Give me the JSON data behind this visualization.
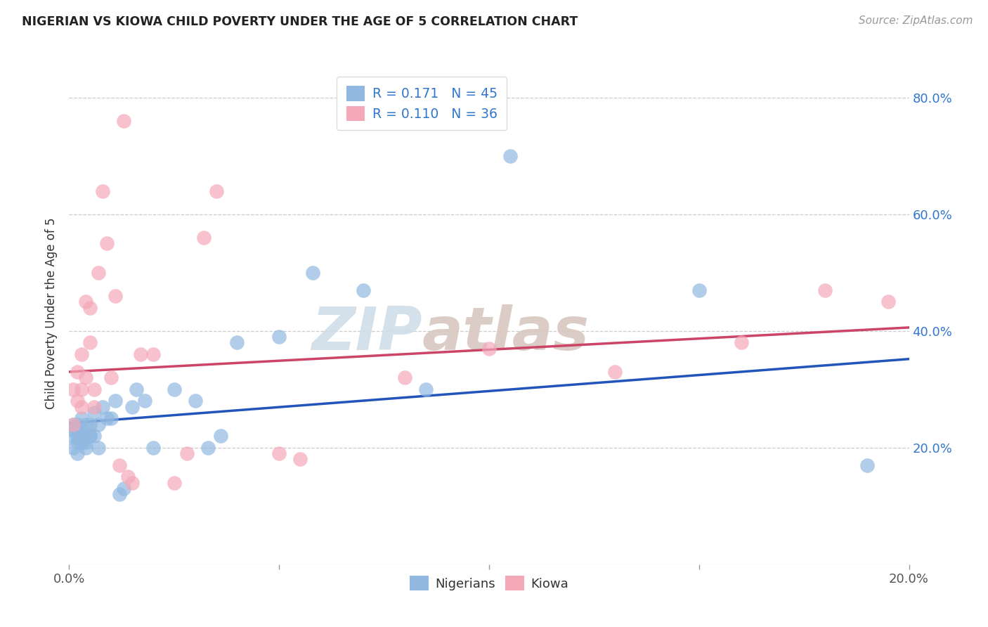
{
  "title": "NIGERIAN VS KIOWA CHILD POVERTY UNDER THE AGE OF 5 CORRELATION CHART",
  "source": "Source: ZipAtlas.com",
  "ylabel": "Child Poverty Under the Age of 5",
  "xlim": [
    0.0,
    0.2
  ],
  "ylim": [
    0.0,
    0.86
  ],
  "xticks": [
    0.0,
    0.05,
    0.1,
    0.15,
    0.2
  ],
  "xtick_labels": [
    "0.0%",
    "",
    "",
    "",
    "20.0%"
  ],
  "yticks": [
    0.2,
    0.4,
    0.6,
    0.8
  ],
  "ytick_labels": [
    "20.0%",
    "40.0%",
    "60.0%",
    "80.0%"
  ],
  "blue_color": "#90b8e0",
  "pink_color": "#f4a8b8",
  "blue_line_color": "#2255bb",
  "pink_line_color": "#cc4466",
  "bg_color": "#ffffff",
  "watermark_zip": "ZIP",
  "watermark_atlas": "atlas",
  "legend_text_1": "R = 0.171   N = 45",
  "legend_text_2": "R = 0.110   N = 36",
  "nigerians_label": "Nigerians",
  "kiowa_label": "Kiowa",
  "blue_x": [
    0.001,
    0.001,
    0.001,
    0.001,
    0.002,
    0.002,
    0.002,
    0.002,
    0.002,
    0.003,
    0.003,
    0.003,
    0.003,
    0.004,
    0.004,
    0.004,
    0.005,
    0.005,
    0.005,
    0.006,
    0.006,
    0.007,
    0.007,
    0.008,
    0.009,
    0.01,
    0.011,
    0.012,
    0.013,
    0.015,
    0.016,
    0.018,
    0.02,
    0.025,
    0.03,
    0.033,
    0.036,
    0.04,
    0.05,
    0.058,
    0.07,
    0.085,
    0.105,
    0.15,
    0.19
  ],
  "blue_y": [
    0.24,
    0.23,
    0.22,
    0.2,
    0.24,
    0.23,
    0.22,
    0.21,
    0.19,
    0.23,
    0.22,
    0.21,
    0.25,
    0.21,
    0.24,
    0.2,
    0.22,
    0.24,
    0.22,
    0.26,
    0.22,
    0.2,
    0.24,
    0.27,
    0.25,
    0.25,
    0.28,
    0.12,
    0.13,
    0.27,
    0.3,
    0.28,
    0.2,
    0.3,
    0.28,
    0.2,
    0.22,
    0.38,
    0.39,
    0.5,
    0.47,
    0.3,
    0.7,
    0.47,
    0.17
  ],
  "pink_x": [
    0.001,
    0.001,
    0.002,
    0.002,
    0.003,
    0.003,
    0.003,
    0.004,
    0.004,
    0.005,
    0.005,
    0.006,
    0.006,
    0.007,
    0.008,
    0.009,
    0.01,
    0.011,
    0.012,
    0.013,
    0.014,
    0.015,
    0.017,
    0.02,
    0.025,
    0.028,
    0.032,
    0.035,
    0.05,
    0.055,
    0.08,
    0.1,
    0.13,
    0.16,
    0.18,
    0.195
  ],
  "pink_y": [
    0.24,
    0.3,
    0.28,
    0.33,
    0.27,
    0.36,
    0.3,
    0.32,
    0.45,
    0.38,
    0.44,
    0.27,
    0.3,
    0.5,
    0.64,
    0.55,
    0.32,
    0.46,
    0.17,
    0.76,
    0.15,
    0.14,
    0.36,
    0.36,
    0.14,
    0.19,
    0.56,
    0.64,
    0.19,
    0.18,
    0.32,
    0.37,
    0.33,
    0.38,
    0.47,
    0.45
  ],
  "blue_intercept": 0.242,
  "blue_slope": 0.55,
  "pink_intercept": 0.33,
  "pink_slope": 0.38
}
